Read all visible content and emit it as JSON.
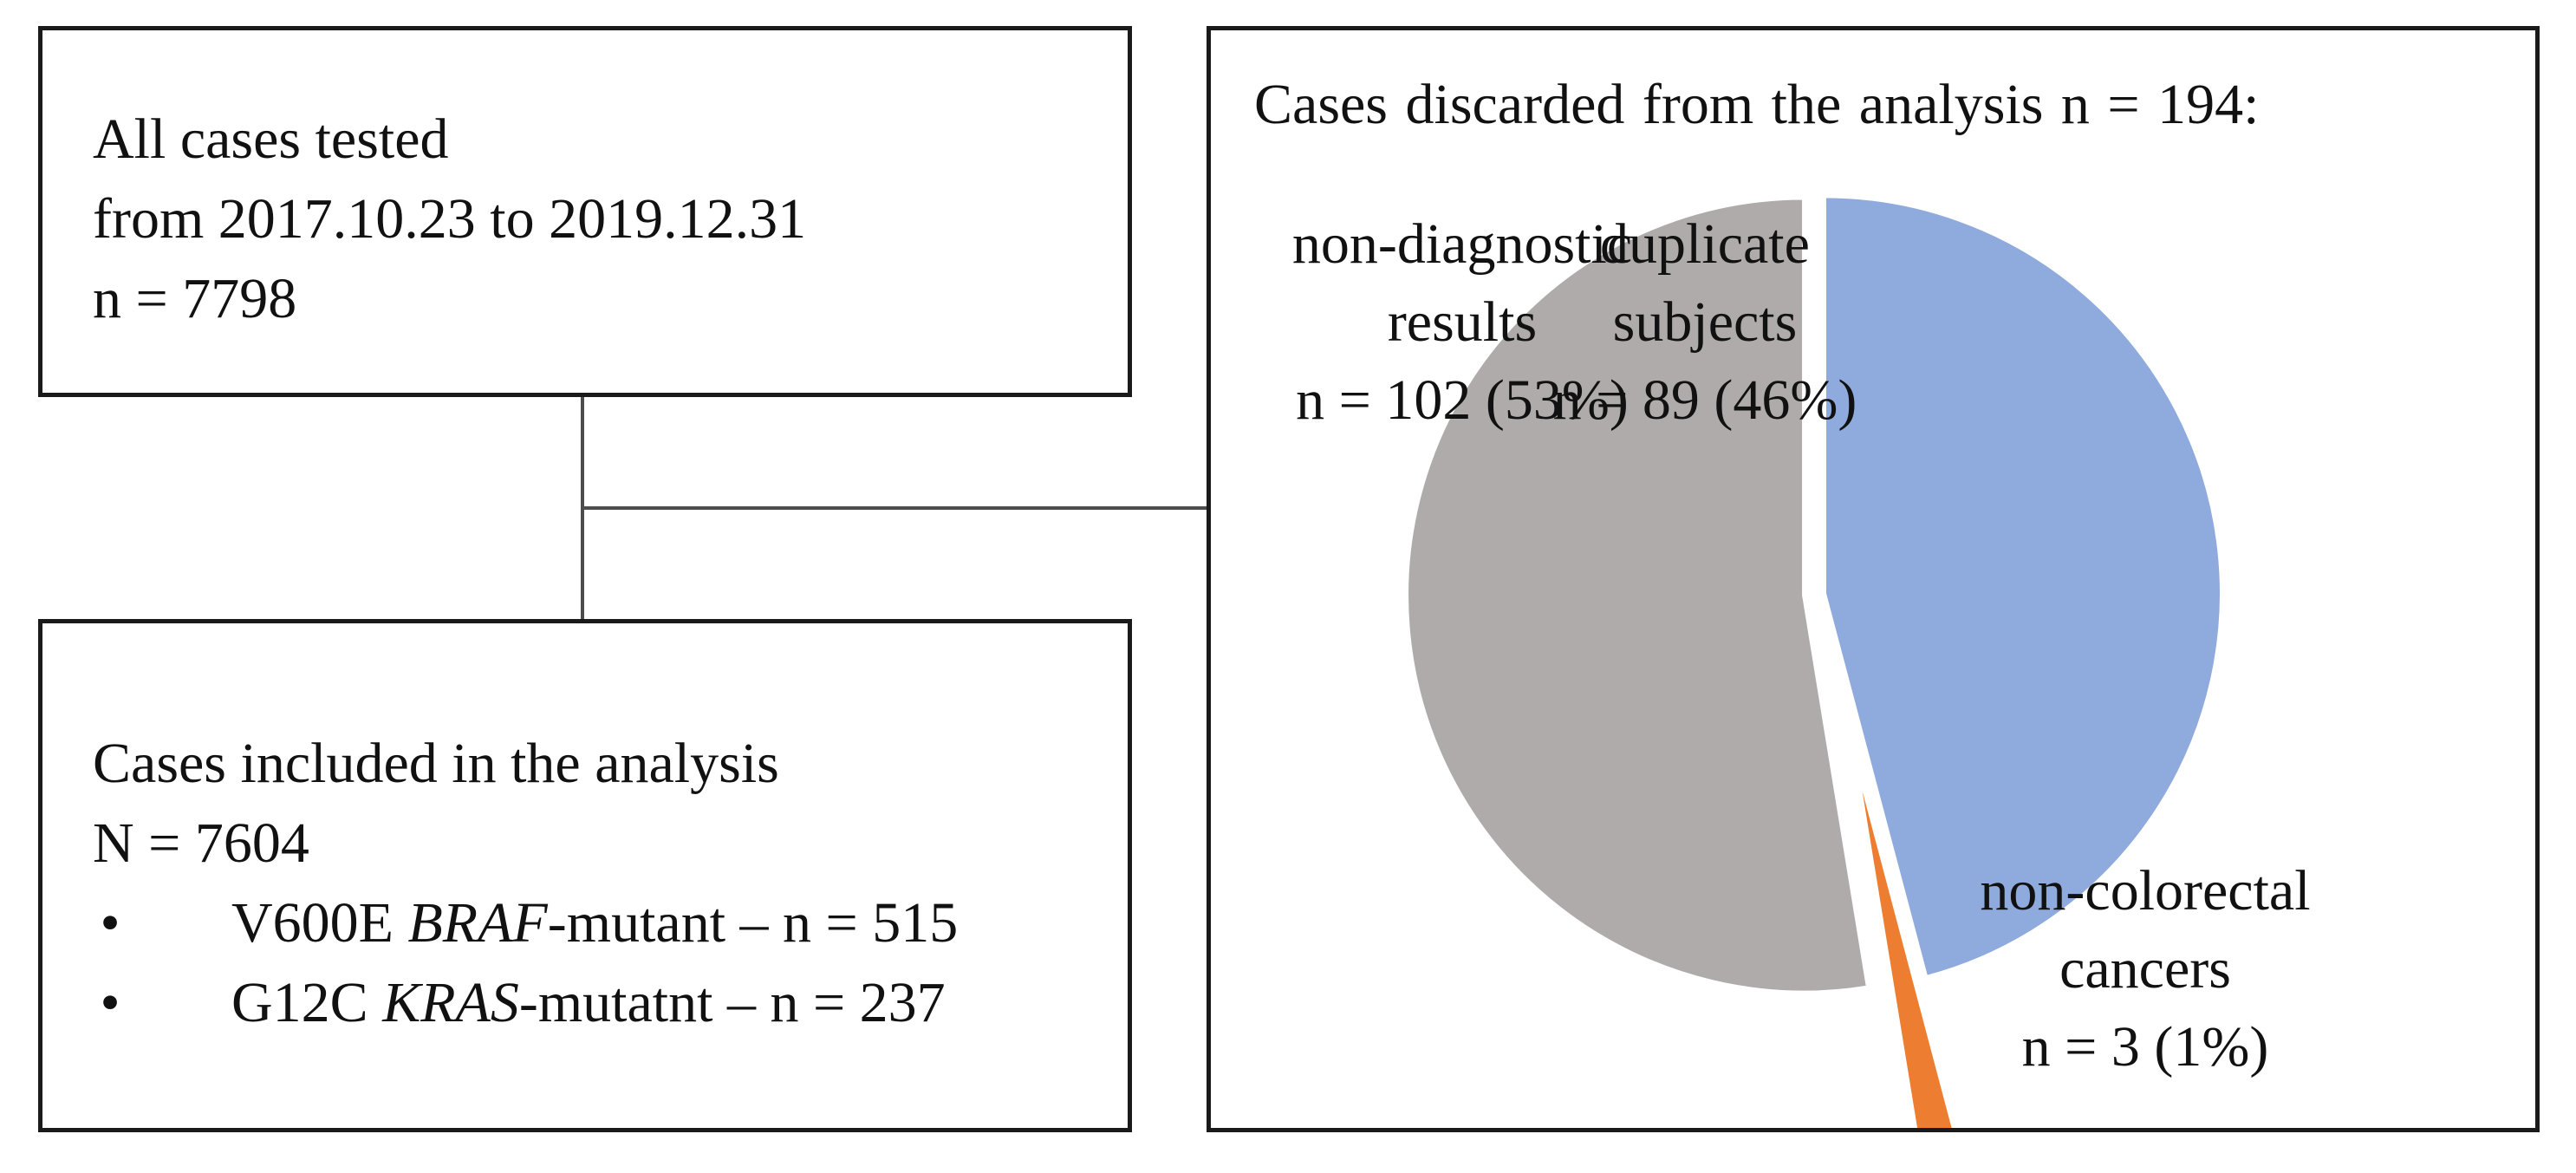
{
  "all_cases": {
    "line1": "All cases tested",
    "line2": "from 2017.10.23 to 2019.12.31",
    "line3": "n = 7798"
  },
  "included": {
    "line1": "Cases included in the analysis",
    "line2": "N = 7604",
    "bullets": [
      {
        "marker": "•",
        "prefix": "V600E ",
        "gene": "BRAF",
        "suffix": "-mutant – n = 515"
      },
      {
        "marker": "•",
        "prefix": "G12C ",
        "gene": "KRAS",
        "suffix": "-mutatnt – n = 237"
      }
    ]
  },
  "discarded": {
    "title": "Cases discarded  from the analysis n = 194:"
  },
  "chart_data": {
    "type": "pie",
    "title": "Cases discarded  from the analysis n = 194:",
    "slices": [
      {
        "key": "duplicate",
        "label_lines": [
          "duplicate",
          "subjects",
          "n = 89 (46%)"
        ],
        "value": 89,
        "percent": 46,
        "color": "#8faadc",
        "exploded": false
      },
      {
        "key": "noncolorectal",
        "label_lines": [
          "non-colorectal",
          "cancers",
          "n = 3 (1%)"
        ],
        "value": 3,
        "percent": 1,
        "color": "#ed7d31",
        "exploded": true
      },
      {
        "key": "nondiagnostic",
        "label_lines": [
          "non-diagnostic",
          "results",
          "n = 102 (53%)"
        ],
        "value": 102,
        "percent": 53,
        "color": "#afabab",
        "exploded": true
      }
    ]
  }
}
